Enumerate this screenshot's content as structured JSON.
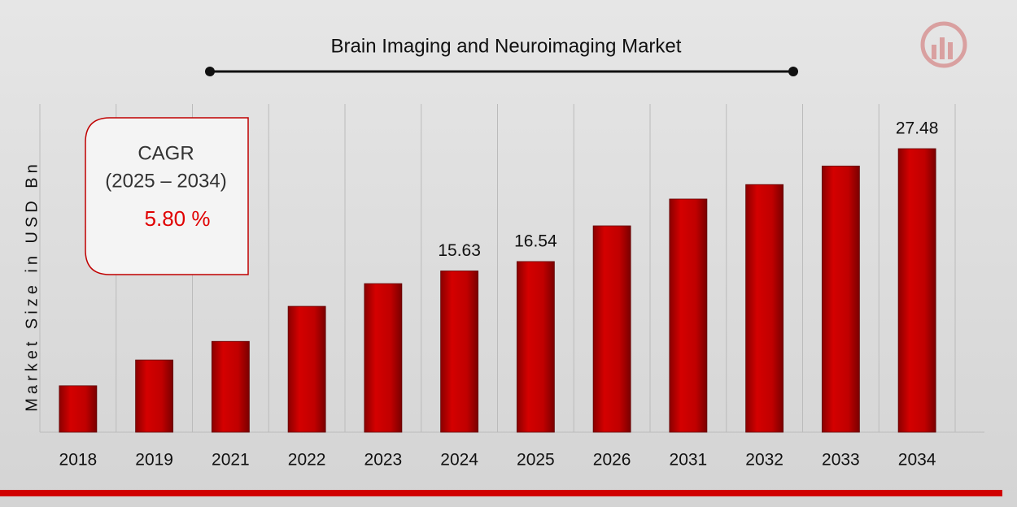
{
  "chart_data": {
    "type": "bar",
    "title": "Brain Imaging and Neuroimaging Market",
    "y_label": "Market Size in USD Bn",
    "categories": [
      "2018",
      "2019",
      "2021",
      "2022",
      "2023",
      "2024",
      "2025",
      "2026",
      "2031",
      "2032",
      "2033",
      "2034"
    ],
    "values": [
      4.5,
      7.0,
      8.8,
      12.2,
      14.4,
      15.63,
      16.54,
      20.0,
      22.6,
      24.0,
      25.8,
      27.48
    ],
    "value_labels": [
      null,
      null,
      null,
      null,
      null,
      "15.63",
      "16.54",
      null,
      null,
      null,
      null,
      "27.48"
    ],
    "color": "#c00000",
    "ylim": [
      0,
      30
    ],
    "annotations": {
      "cagr_title": "CAGR",
      "cagr_period": "(2025 – 2034)",
      "cagr_value": "5.80 %"
    }
  }
}
